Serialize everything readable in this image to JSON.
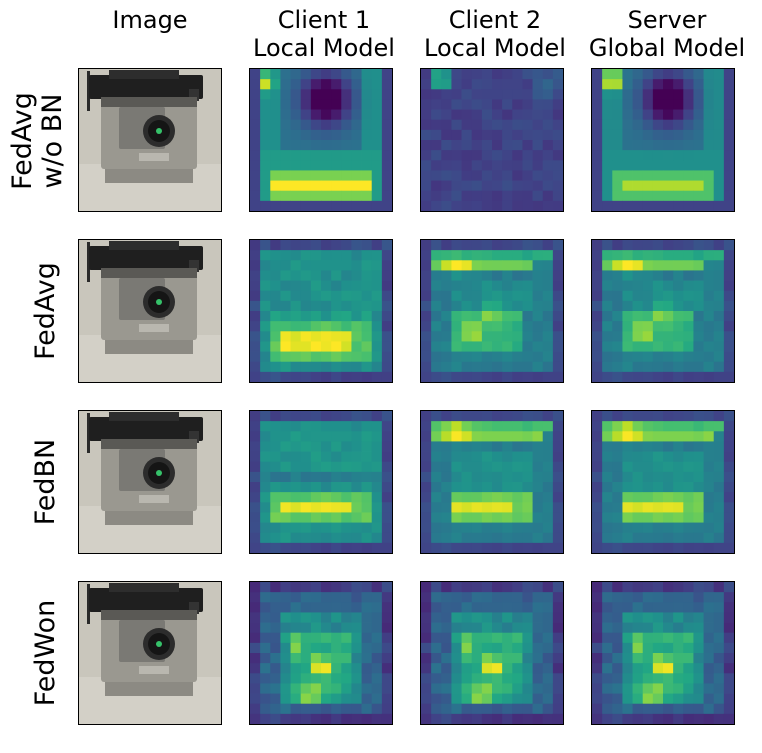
{
  "column_headers": [
    {
      "line1": "",
      "line2": "Image"
    },
    {
      "line1": "Client 1",
      "line2": "Local Model"
    },
    {
      "line1": "Client 2",
      "line2": "Local Model"
    },
    {
      "line1": "Server",
      "line2": "Global Model"
    }
  ],
  "row_labels": [
    {
      "line1": "FedAvg",
      "line2": "w/o BN"
    },
    {
      "line1": "FedAvg",
      "line2": ""
    },
    {
      "line1": "FedBN",
      "line2": ""
    },
    {
      "line1": "FedWon",
      "line2": ""
    }
  ],
  "colormap": "viridis",
  "image_content": "projector"
}
